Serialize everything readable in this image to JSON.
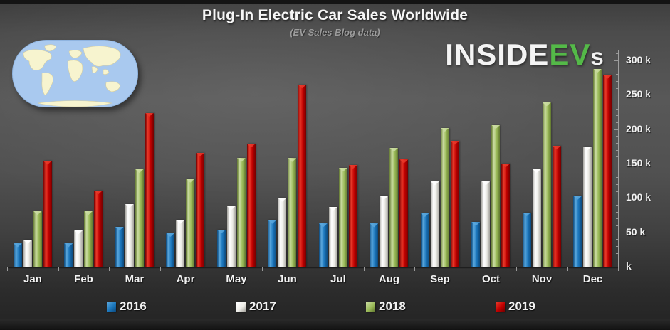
{
  "title": "Plug-In Electric Car Sales Worldwide",
  "subtitle": "(EV Sales Blog data)",
  "logo": {
    "part1": "INSIDE",
    "part2": "EV",
    "part3": "s",
    "green": "#54b948",
    "white": "#f4f4f4"
  },
  "map": {
    "name": "world-map",
    "ocean_color": "#a9c9ef",
    "land_color": "#f7f4cf"
  },
  "chart_data": {
    "type": "bar",
    "title": "Plug-In Electric Car Sales Worldwide",
    "subtitle": "(EV Sales Blog data)",
    "unit": "thousands of vehicles",
    "categories": [
      "Jan",
      "Feb",
      "Mar",
      "Apr",
      "May",
      "Jun",
      "Jul",
      "Aug",
      "Sep",
      "Oct",
      "Nov",
      "Dec"
    ],
    "series": [
      {
        "name": "2016",
        "values_k": [
          34,
          34,
          58,
          49,
          54,
          68,
          63,
          63,
          78,
          65,
          79,
          103
        ],
        "colors": {
          "main": "#1b76bc",
          "light": "#5aa7dd",
          "dark": "#0c4a7e"
        }
      },
      {
        "name": "2017",
        "values_k": [
          39,
          53,
          91,
          68,
          88,
          100,
          87,
          103,
          124,
          124,
          142,
          175
        ],
        "colors": {
          "main": "#eeede8",
          "light": "#ffffff",
          "dark": "#a3a29c"
        }
      },
      {
        "name": "2018",
        "values_k": [
          81,
          81,
          142,
          128,
          158,
          158,
          144,
          173,
          202,
          206,
          239,
          288
        ],
        "colors": {
          "main": "#9bbb59",
          "light": "#ccdda3",
          "dark": "#61782f"
        }
      },
      {
        "name": "2019",
        "values_k": [
          154,
          111,
          224,
          166,
          179,
          265,
          148,
          156,
          183,
          150,
          176,
          279
        ],
        "colors": {
          "main": "#c00000",
          "light": "#ea3a2a",
          "dark": "#750000"
        }
      }
    ],
    "y_axis": {
      "lim_k": [
        0,
        300
      ],
      "major_ticks": [
        {
          "value_k": 0,
          "label": "k"
        },
        {
          "value_k": 50,
          "label": "50 k"
        },
        {
          "value_k": 100,
          "label": "100 k"
        },
        {
          "value_k": 150,
          "label": "150 k"
        },
        {
          "value_k": 200,
          "label": "200 k"
        },
        {
          "value_k": 250,
          "label": "250 k"
        },
        {
          "value_k": 300,
          "label": "300 k"
        }
      ],
      "minor_step_k": 10,
      "side": "right"
    },
    "grid": false,
    "legend_position": "bottom",
    "axis_color": "#a0a0a0",
    "label_color": "#f2f2f2"
  },
  "layout_text": {}
}
